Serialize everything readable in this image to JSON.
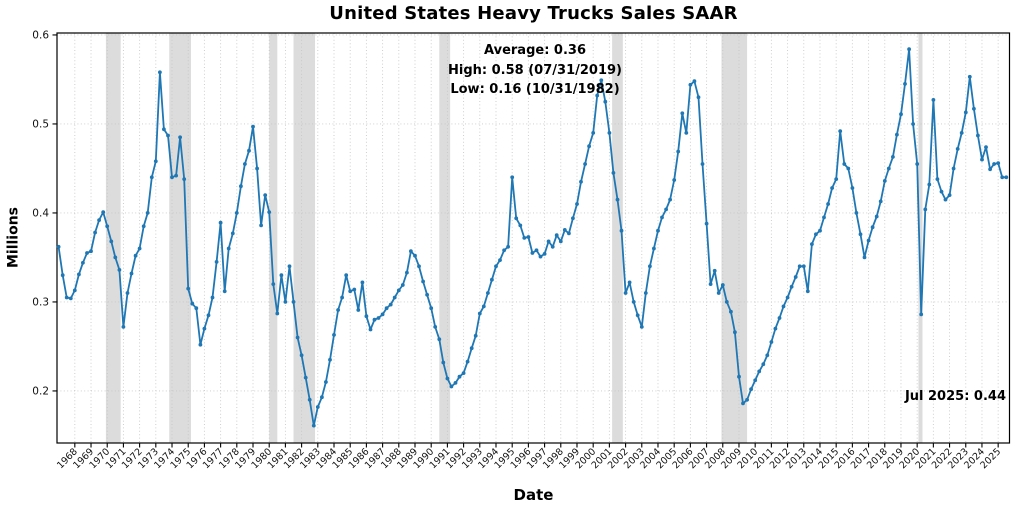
{
  "annotations": {
    "stats_line1": "Average: 0.36",
    "stats_line2": "High: 0.58 (07/31/2019)",
    "stats_line3": "Low: 0.16 (10/31/1982)",
    "latest": "Jul 2025: 0.44"
  },
  "colors": {
    "line": "#1f77b4",
    "marker": "#1f77b4",
    "recession_band": "#dcdcdc",
    "grid": "#c4c4c4",
    "spine": "#000000",
    "text": "#000000"
  },
  "chart_data": {
    "type": "line",
    "title": "United States Heavy Trucks Sales SAAR",
    "xlabel": "Date",
    "ylabel": "Millions",
    "unit": "millions of units, seasonally adjusted annual rate",
    "grid": true,
    "xlim": [
      1966.9,
      2025.7
    ],
    "ylim": [
      0.1415,
      0.6022
    ],
    "x_ticks": [
      1968,
      1969,
      1970,
      1971,
      1972,
      1973,
      1974,
      1975,
      1976,
      1977,
      1978,
      1979,
      1980,
      1981,
      1982,
      1983,
      1984,
      1985,
      1986,
      1987,
      1988,
      1989,
      1990,
      1991,
      1992,
      1993,
      1994,
      1995,
      1996,
      1997,
      1998,
      1999,
      2000,
      2001,
      2002,
      2003,
      2004,
      2005,
      2006,
      2007,
      2008,
      2009,
      2010,
      2011,
      2012,
      2013,
      2014,
      2015,
      2016,
      2017,
      2018,
      2019,
      2020,
      2021,
      2022,
      2023,
      2024,
      2025
    ],
    "y_ticks": [
      0.2,
      0.3,
      0.4,
      0.5,
      0.6
    ],
    "average": 0.36,
    "high": {
      "value": 0.58,
      "date": "07/31/2019"
    },
    "low": {
      "value": 0.16,
      "date": "10/31/1982"
    },
    "latest": {
      "label": "Jul 2025",
      "value": 0.44
    },
    "recession_bands": [
      [
        1969.92,
        1970.83
      ],
      [
        1973.83,
        1975.17
      ],
      [
        1980.0,
        1980.5
      ],
      [
        1981.5,
        1982.83
      ],
      [
        1990.5,
        1991.17
      ],
      [
        2001.17,
        2001.83
      ],
      [
        2007.92,
        2009.5
      ],
      [
        2020.08,
        2020.33
      ]
    ],
    "series_start_year": 1967.0,
    "series_step_years": 0.25,
    "values": [
      0.362,
      0.33,
      0.305,
      0.304,
      0.313,
      0.331,
      0.344,
      0.355,
      0.357,
      0.378,
      0.392,
      0.401,
      0.385,
      0.368,
      0.35,
      0.336,
      0.272,
      0.31,
      0.332,
      0.352,
      0.36,
      0.385,
      0.4,
      0.44,
      0.458,
      0.558,
      0.494,
      0.487,
      0.44,
      0.442,
      0.485,
      0.438,
      0.315,
      0.298,
      0.293,
      0.252,
      0.27,
      0.285,
      0.305,
      0.345,
      0.389,
      0.312,
      0.36,
      0.377,
      0.4,
      0.43,
      0.455,
      0.47,
      0.497,
      0.45,
      0.386,
      0.42,
      0.401,
      0.32,
      0.287,
      0.33,
      0.3,
      0.34,
      0.3,
      0.26,
      0.24,
      0.215,
      0.19,
      0.161,
      0.182,
      0.193,
      0.21,
      0.235,
      0.263,
      0.291,
      0.305,
      0.33,
      0.312,
      0.314,
      0.291,
      0.322,
      0.284,
      0.269,
      0.28,
      0.282,
      0.286,
      0.293,
      0.297,
      0.305,
      0.313,
      0.319,
      0.333,
      0.357,
      0.352,
      0.34,
      0.323,
      0.308,
      0.293,
      0.272,
      0.258,
      0.232,
      0.214,
      0.205,
      0.209,
      0.216,
      0.22,
      0.233,
      0.248,
      0.262,
      0.287,
      0.295,
      0.31,
      0.325,
      0.34,
      0.347,
      0.358,
      0.362,
      0.44,
      0.394,
      0.386,
      0.372,
      0.373,
      0.355,
      0.358,
      0.351,
      0.354,
      0.368,
      0.362,
      0.375,
      0.368,
      0.381,
      0.377,
      0.394,
      0.41,
      0.435,
      0.455,
      0.475,
      0.49,
      0.532,
      0.549,
      0.525,
      0.49,
      0.445,
      0.415,
      0.38,
      0.31,
      0.322,
      0.3,
      0.285,
      0.272,
      0.31,
      0.34,
      0.36,
      0.38,
      0.395,
      0.404,
      0.415,
      0.437,
      0.469,
      0.512,
      0.49,
      0.544,
      0.548,
      0.53,
      0.455,
      0.388,
      0.32,
      0.335,
      0.31,
      0.319,
      0.3,
      0.289,
      0.266,
      0.216,
      0.186,
      0.19,
      0.202,
      0.212,
      0.222,
      0.23,
      0.24,
      0.255,
      0.27,
      0.282,
      0.295,
      0.305,
      0.317,
      0.328,
      0.34,
      0.34,
      0.312,
      0.365,
      0.376,
      0.38,
      0.395,
      0.41,
      0.428,
      0.438,
      0.492,
      0.455,
      0.45,
      0.428,
      0.4,
      0.376,
      0.35,
      0.369,
      0.384,
      0.396,
      0.413,
      0.436,
      0.45,
      0.463,
      0.488,
      0.511,
      0.545,
      0.584,
      0.5,
      0.455,
      0.286,
      0.404,
      0.432,
      0.527,
      0.438,
      0.424,
      0.415,
      0.42,
      0.45,
      0.472,
      0.49,
      0.513,
      0.553,
      0.517,
      0.487,
      0.46,
      0.474,
      0.449,
      0.455,
      0.456,
      0.44,
      0.44
    ]
  }
}
